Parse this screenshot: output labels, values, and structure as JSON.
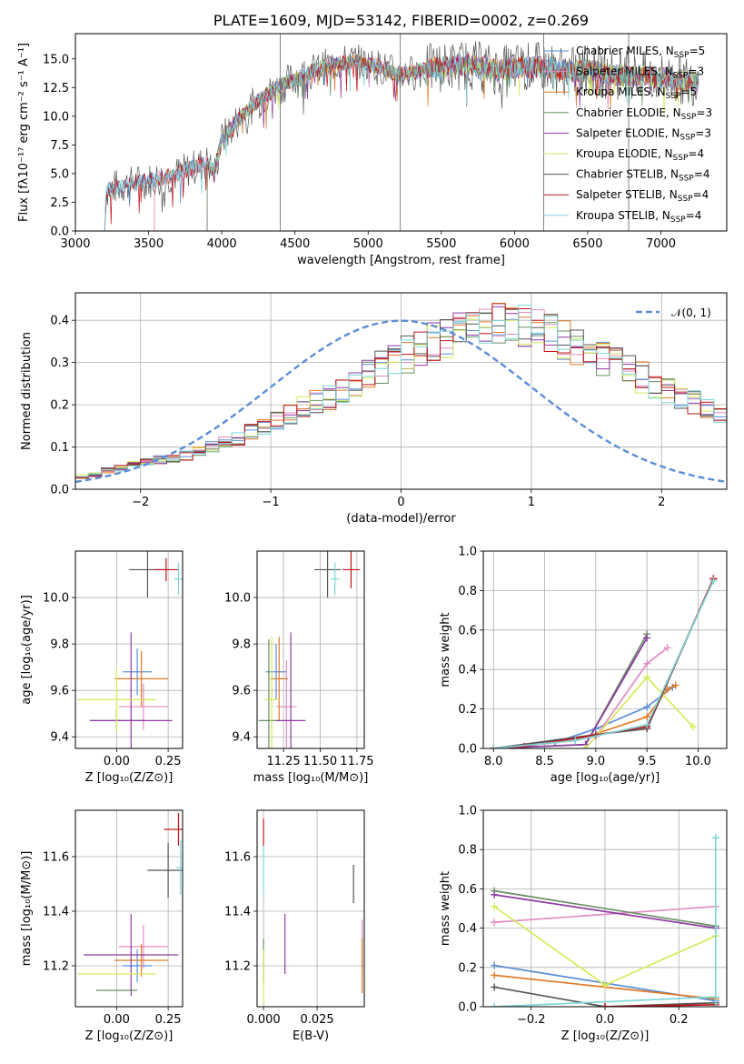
{
  "colors": {
    "Chabrier MILES": "#5b8ed6",
    "Salpeter MILES": "#e38cc3",
    "Kroupa MILES": "#e07a26",
    "Chabrier ELODIE": "#6a8f65",
    "Salpeter ELODIE": "#8e3aa3",
    "Kroupa ELODIE": "#d6ea5a",
    "Chabrier STELIB": "#555555",
    "Salpeter STELIB": "#c0141a",
    "Kroupa STELIB": "#7fd6d8",
    "normal": "#5b8ed6"
  },
  "chart_data": [
    {
      "id": "spectrum",
      "type": "line",
      "title": "PLATE=1609, MJD=53142, FIBERID=0002, z=0.269",
      "xlabel": "wavelength [Angstrom, rest frame]",
      "ylabel": "Flux [fλ10⁻¹⁷ erg cm⁻² s⁻¹ A⁻¹]",
      "xlim": [
        3000,
        7450
      ],
      "ylim": [
        0,
        17.2
      ],
      "xticks": [
        3000,
        3500,
        4000,
        4500,
        5000,
        5500,
        6000,
        6500,
        7000
      ],
      "yticks": [
        0.0,
        2.5,
        5.0,
        7.5,
        10.0,
        12.5,
        15.0
      ],
      "legend_position": "right",
      "legend": [
        {
          "model": "Chabrier MILES",
          "label": "Chabrier MILES, N",
          "sub": "SSP",
          "tail": "=5"
        },
        {
          "model": "Salpeter MILES",
          "label": "Salpeter MILES, N",
          "sub": "SSP",
          "tail": "=3"
        },
        {
          "model": "Kroupa MILES",
          "label": "Kroupa MILES, N",
          "sub": "SSP",
          "tail": "=5"
        },
        {
          "model": "Chabrier ELODIE",
          "label": "Chabrier ELODIE, N",
          "sub": "SSP",
          "tail": "=3"
        },
        {
          "model": "Salpeter ELODIE",
          "label": "Salpeter ELODIE, N",
          "sub": "SSP",
          "tail": "=3"
        },
        {
          "model": "Kroupa ELODIE",
          "label": "Kroupa ELODIE, N",
          "sub": "SSP",
          "tail": "=4"
        },
        {
          "model": "Chabrier STELIB",
          "label": "Chabrier STELIB, N",
          "sub": "SSP",
          "tail": "=4"
        },
        {
          "model": "Salpeter STELIB",
          "label": "Salpeter STELIB, N",
          "sub": "SSP",
          "tail": "=4"
        },
        {
          "model": "Kroupa STELIB",
          "label": "Kroupa STELIB, N",
          "sub": "SSP",
          "tail": "=4"
        }
      ],
      "continuum": [
        [
          3200,
          0
        ],
        [
          3210,
          3.6
        ],
        [
          3300,
          3.9
        ],
        [
          3400,
          4.2
        ],
        [
          3500,
          4.4
        ],
        [
          3600,
          4.6
        ],
        [
          3700,
          5.0
        ],
        [
          3800,
          5.5
        ],
        [
          3900,
          6.0
        ],
        [
          3950,
          5.0
        ],
        [
          4000,
          8.0
        ],
        [
          4100,
          9.5
        ],
        [
          4200,
          10.8
        ],
        [
          4300,
          11.8
        ],
        [
          4400,
          12.6
        ],
        [
          4500,
          13.3
        ],
        [
          4600,
          13.8
        ],
        [
          4700,
          14.3
        ],
        [
          4800,
          14.6
        ],
        [
          4900,
          14.8
        ],
        [
          5000,
          14.5
        ],
        [
          5100,
          14.2
        ],
        [
          5200,
          13.6
        ],
        [
          5300,
          13.8
        ],
        [
          5400,
          14.1
        ],
        [
          5500,
          14.3
        ],
        [
          5600,
          14.4
        ],
        [
          5700,
          14.5
        ],
        [
          5800,
          14.2
        ],
        [
          5900,
          14.0
        ],
        [
          6000,
          14.2
        ],
        [
          6100,
          14.3
        ],
        [
          6200,
          14.3
        ],
        [
          6300,
          14.1
        ],
        [
          6400,
          13.9
        ],
        [
          6500,
          14.0
        ],
        [
          6600,
          13.8
        ],
        [
          6700,
          13.6
        ],
        [
          6800,
          13.5
        ],
        [
          6900,
          13.5
        ],
        [
          7000,
          13.3
        ],
        [
          7100,
          13.2
        ],
        [
          7200,
          13.1
        ],
        [
          7260,
          13.0
        ]
      ],
      "model_starts": {
        "Chabrier MILES": 3200,
        "Salpeter MILES": 3540,
        "Kroupa MILES": 3540,
        "Chabrier ELODIE": 3900,
        "Salpeter ELODIE": 3900,
        "Kroupa ELODIE": 3900,
        "Chabrier STELIB": 3200,
        "Salpeter STELIB": 3200,
        "Kroupa STELIB": 3200
      },
      "spikes": [
        4400,
        6780,
        5220,
        6200
      ]
    },
    {
      "id": "residuals",
      "type": "histogram",
      "xlabel": "(data-model)/error",
      "ylabel": "Normed distribution",
      "xlim": [
        -2.5,
        2.5
      ],
      "ylim": [
        0,
        0.465
      ],
      "xticks": [
        -2,
        -1,
        0,
        1,
        2
      ],
      "yticks": [
        0.0,
        0.1,
        0.2,
        0.3,
        0.4
      ],
      "legend_position": "top-right",
      "legend_label": "𝒩(0, 1)",
      "bins_from": -2.5,
      "bin_width": 0.1,
      "base": [
        0.03,
        0.035,
        0.045,
        0.05,
        0.06,
        0.065,
        0.07,
        0.075,
        0.08,
        0.09,
        0.1,
        0.11,
        0.12,
        0.135,
        0.15,
        0.165,
        0.18,
        0.195,
        0.205,
        0.215,
        0.23,
        0.25,
        0.27,
        0.29,
        0.305,
        0.32,
        0.335,
        0.35,
        0.36,
        0.37,
        0.375,
        0.38,
        0.39,
        0.395,
        0.39,
        0.38,
        0.37,
        0.355,
        0.34,
        0.33,
        0.31,
        0.295,
        0.28,
        0.265,
        0.25,
        0.235,
        0.22,
        0.205,
        0.195,
        0.18,
        0.16,
        0.145,
        0.13,
        0.12,
        0.11,
        0.1,
        0.09,
        0.08,
        0.075,
        0.065,
        0.06,
        0.055,
        0.05,
        0.045,
        0.04,
        0.038,
        0.035,
        0.03,
        0.028,
        0.025
      ]
    },
    {
      "id": "age-vs-Z",
      "type": "errorbar",
      "xlabel": "Z [log₁₀(Z/Z⊙)]",
      "ylabel": "age  [log₁₀(age/yr)]",
      "xlim": [
        -0.2,
        0.32
      ],
      "ylim": [
        9.35,
        10.2
      ],
      "xticks": [
        0.0,
        0.25
      ],
      "yticks": [
        9.4,
        9.6,
        9.8,
        10.0
      ],
      "points": [
        {
          "model": "Chabrier MILES",
          "x": 0.1,
          "xerr": 0.07,
          "y": 9.68,
          "yerr": 0.1
        },
        {
          "model": "Salpeter MILES",
          "x": 0.13,
          "xerr": 0.12,
          "y": 9.53,
          "yerr": 0.1
        },
        {
          "model": "Kroupa MILES",
          "x": 0.12,
          "xerr": 0.13,
          "y": 9.65,
          "yerr": 0.12
        },
        {
          "model": "Chabrier ELODIE",
          "x": 0.0,
          "xerr": 0.13,
          "y": 9.47,
          "yerr": 0.05
        },
        {
          "model": "Salpeter ELODIE",
          "x": 0.07,
          "xerr": 0.2,
          "y": 9.47,
          "yerr": 0.38
        },
        {
          "model": "Kroupa ELODIE",
          "x": 0.0,
          "xerr": 0.19,
          "y": 9.56,
          "yerr": 0.14
        },
        {
          "model": "Chabrier STELIB",
          "x": 0.15,
          "xerr": 0.09,
          "y": 10.12,
          "yerr": 0.12
        },
        {
          "model": "Salpeter STELIB",
          "x": 0.24,
          "xerr": 0.06,
          "y": 10.12,
          "yerr": 0.05
        },
        {
          "model": "Kroupa STELIB",
          "x": 0.3,
          "xerr": 0.02,
          "y": 10.08,
          "yerr": 0.07
        }
      ]
    },
    {
      "id": "age-vs-mass",
      "type": "errorbar",
      "xlabel": "mass [log₁₀(M/M⊙)]",
      "ylabel": "",
      "xlim": [
        11.07,
        11.8
      ],
      "ylim": [
        9.35,
        10.2
      ],
      "xticks": [
        11.25,
        11.5,
        11.75
      ],
      "yticks": [
        9.4,
        9.6,
        9.8,
        10.0
      ],
      "points": [
        {
          "model": "Chabrier MILES",
          "x": 11.2,
          "xerr": 0.07,
          "y": 9.68,
          "yerr": 0.12
        },
        {
          "model": "Salpeter MILES",
          "x": 11.27,
          "xerr": 0.07,
          "y": 9.53,
          "yerr": 0.2
        },
        {
          "model": "Kroupa MILES",
          "x": 11.22,
          "xerr": 0.06,
          "y": 9.65,
          "yerr": 0.18
        },
        {
          "model": "Chabrier ELODIE",
          "x": 11.15,
          "xerr": 0.07,
          "y": 9.47,
          "yerr": 0.35
        },
        {
          "model": "Salpeter ELODIE",
          "x": 11.3,
          "xerr": 0.1,
          "y": 9.47,
          "yerr": 0.38
        },
        {
          "model": "Kroupa ELODIE",
          "x": 11.17,
          "xerr": 0.05,
          "y": 9.56,
          "yerr": 0.27
        },
        {
          "model": "Chabrier STELIB",
          "x": 11.55,
          "xerr": 0.09,
          "y": 10.12,
          "yerr": 0.12
        },
        {
          "model": "Salpeter STELIB",
          "x": 11.71,
          "xerr": 0.06,
          "y": 10.12,
          "yerr": 0.08
        },
        {
          "model": "Kroupa STELIB",
          "x": 11.6,
          "xerr": 0.03,
          "y": 10.08,
          "yerr": 0.07
        }
      ]
    },
    {
      "id": "weight-vs-age",
      "type": "line",
      "xlabel": "age  [log₁₀(age/yr)]",
      "ylabel": "mass weight",
      "xlim": [
        7.9,
        10.28
      ],
      "ylim": [
        0,
        1.0
      ],
      "xticks": [
        8.0,
        8.5,
        9.0,
        9.5,
        10.0
      ],
      "yticks": [
        0.0,
        0.2,
        0.4,
        0.6,
        0.8,
        1.0
      ],
      "series": [
        {
          "model": "Chabrier MILES",
          "x": [
            8.0,
            8.6,
            9.0,
            9.5,
            9.75
          ],
          "y": [
            0.0,
            0.03,
            0.1,
            0.21,
            0.31
          ]
        },
        {
          "model": "Salpeter MILES",
          "x": [
            8.0,
            9.0,
            9.5,
            9.7
          ],
          "y": [
            0.0,
            0.06,
            0.43,
            0.51
          ]
        },
        {
          "model": "Kroupa MILES",
          "x": [
            8.0,
            8.8,
            9.5,
            9.7,
            9.78
          ],
          "y": [
            0.0,
            0.04,
            0.16,
            0.3,
            0.32
          ]
        },
        {
          "model": "Chabrier ELODIE",
          "x": [
            8.0,
            8.9,
            9.5
          ],
          "y": [
            0.0,
            0.02,
            0.58
          ]
        },
        {
          "model": "Salpeter ELODIE",
          "x": [
            8.0,
            8.9,
            9.5
          ],
          "y": [
            0.0,
            0.02,
            0.56
          ]
        },
        {
          "model": "Kroupa ELODIE",
          "x": [
            8.9,
            9.5,
            9.95
          ],
          "y": [
            0.0,
            0.36,
            0.11
          ]
        },
        {
          "model": "Chabrier STELIB",
          "x": [
            8.0,
            9.0,
            9.5,
            10.15
          ],
          "y": [
            0.0,
            0.07,
            0.1,
            0.86
          ]
        },
        {
          "model": "Salpeter STELIB",
          "x": [
            8.0,
            8.3,
            9.5,
            10.15
          ],
          "y": [
            0.0,
            0.01,
            0.11,
            0.86
          ]
        },
        {
          "model": "Kroupa STELIB",
          "x": [
            8.0,
            8.8,
            9.5,
            10.15
          ],
          "y": [
            0.0,
            0.04,
            0.12,
            0.85
          ]
        }
      ]
    },
    {
      "id": "mass-vs-Z",
      "type": "errorbar",
      "xlabel": "Z [log₁₀(Z/Z⊙)]",
      "ylabel": "mass [log₁₀(M/M⊙)]",
      "xlim": [
        -0.2,
        0.32
      ],
      "ylim": [
        11.05,
        11.77
      ],
      "xticks": [
        0.0,
        0.25
      ],
      "yticks": [
        11.2,
        11.4,
        11.6
      ],
      "points": [
        {
          "model": "Chabrier MILES",
          "x": 0.1,
          "xerr": 0.07,
          "y": 11.2,
          "yerr": 0.06
        },
        {
          "model": "Salpeter MILES",
          "x": 0.13,
          "xerr": 0.12,
          "y": 11.27,
          "yerr": 0.08
        },
        {
          "model": "Kroupa MILES",
          "x": 0.12,
          "xerr": 0.13,
          "y": 11.22,
          "yerr": 0.06
        },
        {
          "model": "Chabrier ELODIE",
          "x": 0.0,
          "xerr": 0.1,
          "y": 11.11,
          "yerr": 0.0
        },
        {
          "model": "Salpeter ELODIE",
          "x": 0.07,
          "xerr": 0.23,
          "y": 11.24,
          "yerr": 0.15
        },
        {
          "model": "Kroupa ELODIE",
          "x": 0.0,
          "xerr": 0.19,
          "y": 11.17,
          "yerr": 0.0
        },
        {
          "model": "Chabrier STELIB",
          "x": 0.25,
          "xerr": 0.1,
          "y": 11.55,
          "yerr": 0.1
        },
        {
          "model": "Salpeter STELIB",
          "x": 0.3,
          "xerr": 0.07,
          "y": 11.7,
          "yerr": 0.06
        },
        {
          "model": "Kroupa STELIB",
          "x": 0.31,
          "xerr": 0.02,
          "y": 11.56,
          "yerr": 0.1
        }
      ]
    },
    {
      "id": "mass-vs-ebv",
      "type": "errorbar",
      "xlabel": "E(B-V)",
      "ylabel": "",
      "xlim": [
        -0.003,
        0.047
      ],
      "ylim": [
        11.05,
        11.77
      ],
      "xticks": [
        0.0,
        0.025
      ],
      "yticks": [
        11.2,
        11.4,
        11.6
      ],
      "points": [
        {
          "model": "Chabrier MILES",
          "x": 0.0,
          "xerr": 0,
          "y": 11.2,
          "yerr": 0.06
        },
        {
          "model": "Salpeter MILES",
          "x": 0.046,
          "xerr": 0,
          "y": 11.27,
          "yerr": 0.1
        },
        {
          "model": "Kroupa MILES",
          "x": 0.046,
          "xerr": 0,
          "y": 11.2,
          "yerr": 0.1
        },
        {
          "model": "Chabrier ELODIE",
          "x": 0.0,
          "xerr": 0,
          "y": 11.22,
          "yerr": 0.08
        },
        {
          "model": "Salpeter ELODIE",
          "x": 0.01,
          "xerr": 0,
          "y": 11.28,
          "yerr": 0.11
        },
        {
          "model": "Kroupa ELODIE",
          "x": 0.0,
          "xerr": 0,
          "y": 11.16,
          "yerr": 0.1
        },
        {
          "model": "Chabrier STELIB",
          "x": 0.042,
          "xerr": 0,
          "y": 11.5,
          "yerr": 0.07
        },
        {
          "model": "Salpeter STELIB",
          "x": 0.0,
          "xerr": 0,
          "y": 11.69,
          "yerr": 0.05
        },
        {
          "model": "Kroupa STELIB",
          "x": 0.0,
          "xerr": 0,
          "y": 11.55,
          "yerr": 0.09
        }
      ]
    },
    {
      "id": "weight-vs-Z",
      "type": "line",
      "xlabel": "Z [log₁₀(Z/Z⊙)]",
      "ylabel": "mass weight",
      "xlim": [
        -0.33,
        0.33
      ],
      "ylim": [
        0,
        1.0
      ],
      "xticks": [
        -0.2,
        0.0,
        0.2
      ],
      "yticks": [
        0.0,
        0.2,
        0.4,
        0.6,
        0.8,
        1.0
      ],
      "series": [
        {
          "model": "Chabrier MILES",
          "x": [
            -0.3,
            0.3
          ],
          "y": [
            0.21,
            0.03
          ]
        },
        {
          "model": "Salpeter MILES",
          "x": [
            -0.3,
            0.3
          ],
          "y": [
            0.43,
            0.51
          ]
        },
        {
          "model": "Kroupa MILES",
          "x": [
            -0.3,
            0.3
          ],
          "y": [
            0.16,
            0.04
          ]
        },
        {
          "model": "Chabrier ELODIE",
          "x": [
            -0.3,
            0.3
          ],
          "y": [
            0.59,
            0.41
          ]
        },
        {
          "model": "Salpeter ELODIE",
          "x": [
            -0.3,
            0.3
          ],
          "y": [
            0.57,
            0.4
          ]
        },
        {
          "model": "Kroupa ELODIE",
          "x": [
            -0.3,
            0.0,
            0.3
          ],
          "y": [
            0.51,
            0.11,
            0.36
          ]
        },
        {
          "model": "Chabrier STELIB",
          "x": [
            -0.3,
            0.0,
            0.3
          ],
          "y": [
            0.1,
            0.0,
            0.02
          ]
        },
        {
          "model": "Salpeter STELIB",
          "x": [
            0.0,
            0.3
          ],
          "y": [
            0.0,
            0.01
          ]
        },
        {
          "model": "Kroupa STELIB",
          "x": [
            -0.3,
            0.3
          ],
          "y": [
            0.0,
            0.05
          ]
        },
        {
          "model": "Kroupa STELIB",
          "x": [
            0.3,
            0.3
          ],
          "y": [
            0.0,
            0.86
          ]
        }
      ]
    }
  ]
}
